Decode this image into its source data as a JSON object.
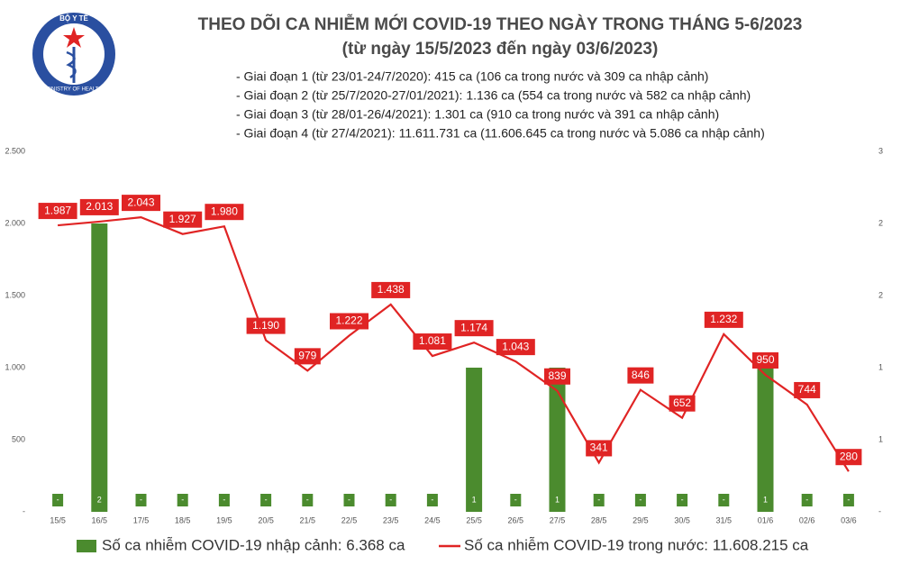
{
  "logo": {
    "top": "BỘ Y TẾ",
    "bottom": "MINISTRY OF HEALTH"
  },
  "chart_data": {
    "type": "combo",
    "title": "THEO DÕI CA NHIỄM MỚI COVID-19 THEO NGÀY TRONG THÁNG 5-6/2023",
    "subtitle": "(từ ngày 15/5/2023 đến ngày 03/6/2023)",
    "annotations": [
      "- Giai đoạn 1 (từ 23/01-24/7/2020): 415 ca (106 ca trong nước và 309 ca nhập cảnh)",
      "- Giai đoạn 2 (từ 25/7/2020-27/01/2021): 1.136 ca (554 ca trong nước và 582 ca nhập cảnh)",
      "- Giai đoạn 3 (từ 28/01-26/4/2021): 1.301 ca (910 ca trong nước và 391 ca nhập cảnh)",
      "- Giai đoạn 4 (từ 27/4/2021): 11.611.731 ca (11.606.645 ca trong nước và 5.086 ca nhập cảnh)"
    ],
    "categories": [
      "15/5",
      "16/5",
      "17/5",
      "18/5",
      "19/5",
      "20/5",
      "21/5",
      "22/5",
      "23/5",
      "24/5",
      "25/5",
      "26/5",
      "27/5",
      "28/5",
      "29/5",
      "30/5",
      "31/5",
      "01/6",
      "02/6",
      "03/6"
    ],
    "series": [
      {
        "name": "Số ca nhiễm COVID-19 nhập cảnh: 6.368 ca",
        "type": "bar",
        "axis": "y2",
        "color": "#4b8b2e",
        "values": [
          0,
          2,
          0,
          0,
          0,
          0,
          0,
          0,
          0,
          0,
          1,
          0,
          1,
          0,
          0,
          0,
          0,
          1,
          0,
          0
        ],
        "value_labels": [
          "-",
          "2",
          "-",
          "-",
          "-",
          "-",
          "-",
          "-",
          "-",
          "-",
          "1",
          "-",
          "1",
          "-",
          "-",
          "-",
          "-",
          "1",
          "-",
          "-"
        ]
      },
      {
        "name": "Số ca nhiễm COVID-19 trong nước: 11.608.215 ca",
        "type": "line",
        "color": "#e02424",
        "values": [
          1987,
          2013,
          2043,
          1927,
          1980,
          1190,
          979,
          1222,
          1438,
          1081,
          1174,
          1043,
          839,
          341,
          846,
          652,
          1232,
          950,
          744,
          280
        ],
        "value_labels": [
          "1.987",
          "2.013",
          "2.043",
          "1.927",
          "1.980",
          "1.190",
          "979",
          "1.222",
          "1.438",
          "1.081",
          "1.174",
          "1.043",
          "839",
          "341",
          "846",
          "652",
          "1.232",
          "950",
          "744",
          "280"
        ]
      }
    ],
    "ylim": [
      0,
      2500
    ],
    "yticks": [
      {
        "value": 0,
        "label": "-"
      },
      {
        "value": 500,
        "label": "500"
      },
      {
        "value": 1000,
        "label": "1.000"
      },
      {
        "value": 1500,
        "label": "1.500"
      },
      {
        "value": 2000,
        "label": "2.000"
      },
      {
        "value": 2500,
        "label": "2.500"
      }
    ],
    "y2lim": [
      0,
      2.5
    ],
    "y2ticks": [
      {
        "value": 0,
        "label": "-"
      },
      {
        "value": 0.5,
        "label": "1"
      },
      {
        "value": 1,
        "label": "1"
      },
      {
        "value": 1.5,
        "label": "2"
      },
      {
        "value": 2,
        "label": "2"
      },
      {
        "value": 2.5,
        "label": "3"
      }
    ],
    "grid": false
  }
}
